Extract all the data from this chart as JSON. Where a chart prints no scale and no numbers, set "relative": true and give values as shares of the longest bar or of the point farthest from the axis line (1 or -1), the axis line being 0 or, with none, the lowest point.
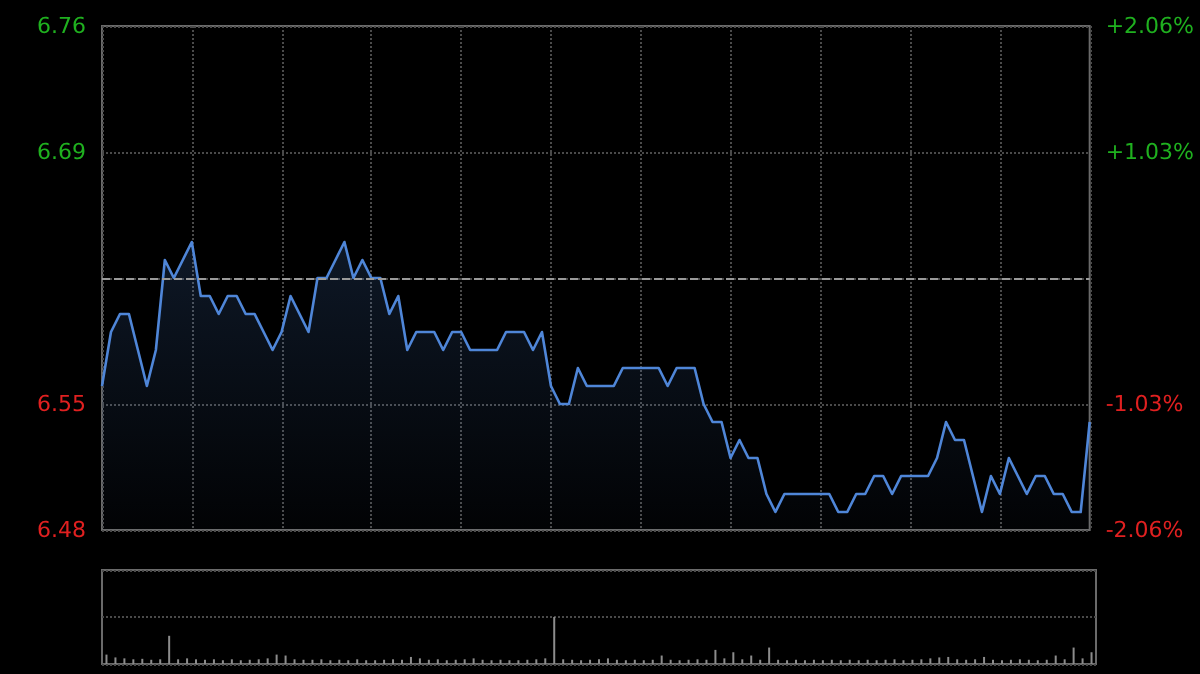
{
  "chart_data": [
    {
      "type": "area",
      "categories": [
        null,
        null,
        null,
        null,
        null,
        null,
        null,
        null,
        null,
        null,
        null,
        null,
        null,
        null,
        null,
        null,
        null,
        null,
        null,
        null,
        null,
        null,
        null,
        null,
        null,
        null,
        null,
        null,
        null,
        null,
        null,
        null,
        null,
        null,
        null,
        null,
        null,
        null,
        null,
        null,
        null,
        null,
        null,
        null,
        null,
        null,
        null,
        null,
        null,
        null,
        null,
        null,
        null,
        null,
        null,
        null,
        null,
        null,
        null,
        null,
        null,
        null,
        null,
        null,
        null,
        null,
        null,
        null,
        null,
        null,
        null,
        null,
        null,
        null,
        null,
        null,
        null,
        null,
        null,
        null,
        null,
        null,
        null,
        null,
        null,
        null,
        null,
        null,
        null,
        null,
        null,
        null,
        null,
        null,
        null,
        null,
        null,
        null,
        null,
        null,
        null,
        null,
        null,
        null,
        null,
        null,
        null,
        null,
        null,
        null,
        null
      ],
      "series": [
        {
          "color": "#4f86d8",
          "values": [
            6.56,
            6.59,
            6.6,
            6.6,
            6.58,
            6.56,
            6.58,
            6.63,
            6.62,
            6.63,
            6.64,
            6.61,
            6.61,
            6.6,
            6.61,
            6.61,
            6.6,
            6.6,
            6.59,
            6.58,
            6.59,
            6.61,
            6.6,
            6.59,
            6.62,
            6.62,
            6.63,
            6.64,
            6.62,
            6.63,
            6.62,
            6.62,
            6.6,
            6.61,
            6.58,
            6.59,
            6.59,
            6.59,
            6.58,
            6.59,
            6.59,
            6.58,
            6.58,
            6.58,
            6.58,
            6.59,
            6.59,
            6.59,
            6.58,
            6.59,
            6.56,
            6.55,
            6.55,
            6.57,
            6.56,
            6.56,
            6.56,
            6.56,
            6.57,
            6.57,
            6.57,
            6.57,
            6.57,
            6.56,
            6.57,
            6.57,
            6.57,
            6.55,
            6.54,
            6.54,
            6.52,
            6.53,
            6.52,
            6.52,
            6.5,
            6.49,
            6.5,
            6.5,
            6.5,
            6.5,
            6.5,
            6.5,
            6.49,
            6.49,
            6.5,
            6.5,
            6.51,
            6.51,
            6.5,
            6.51,
            6.51,
            6.51,
            6.51,
            6.52,
            6.54,
            6.53,
            6.53,
            6.51,
            6.49,
            6.51,
            6.5,
            6.52,
            6.51,
            6.5,
            6.51,
            6.51,
            6.5,
            6.5,
            6.49,
            6.49,
            6.54
          ]
        }
      ],
      "ylim": [
        6.48,
        6.76
      ],
      "yticks": [
        6.48,
        6.55,
        {
          "value": 6.62,
          "label": null
        },
        6.69,
        6.76
      ],
      "y2lim": [
        -2.06,
        2.06
      ],
      "y2ticks": [
        {
          "value": -2.06,
          "label": "-2.06%"
        },
        {
          "value": -1.03,
          "label": "-1.03%"
        },
        {
          "value": 0,
          "label": null
        },
        {
          "value": 1.03,
          "label": "+1.03%"
        },
        {
          "value": 2.06,
          "label": "+2.06%"
        }
      ],
      "ref_lines": [
        {
          "axis": "y",
          "value": 6.62,
          "color": "#9a9a9a",
          "line_style": "dashed"
        }
      ],
      "grid": true,
      "tick_labels": "y"
    },
    {
      "type": "bar",
      "relative": true,
      "categories": [
        null,
        null,
        null,
        null,
        null,
        null,
        null,
        null,
        null,
        null,
        null,
        null,
        null,
        null,
        null,
        null,
        null,
        null,
        null,
        null,
        null,
        null,
        null,
        null,
        null,
        null,
        null,
        null,
        null,
        null,
        null,
        null,
        null,
        null,
        null,
        null,
        null,
        null,
        null,
        null,
        null,
        null,
        null,
        null,
        null,
        null,
        null,
        null,
        null,
        null,
        null,
        null,
        null,
        null,
        null,
        null,
        null,
        null,
        null,
        null,
        null,
        null,
        null,
        null,
        null,
        null,
        null,
        null,
        null,
        null,
        null,
        null,
        null,
        null,
        null,
        null,
        null,
        null,
        null,
        null,
        null,
        null,
        null,
        null,
        null,
        null,
        null,
        null,
        null,
        null,
        null,
        null,
        null,
        null,
        null,
        null,
        null,
        null,
        null,
        null,
        null,
        null,
        null,
        null,
        null,
        null,
        null,
        null,
        null,
        null,
        null
      ],
      "series": [
        {
          "color": "#8c8c8c",
          "values": [
            0.2,
            0.14,
            0.12,
            0.1,
            0.11,
            0.09,
            0.1,
            0.6,
            0.1,
            0.12,
            0.1,
            0.09,
            0.1,
            0.08,
            0.1,
            0.08,
            0.09,
            0.1,
            0.12,
            0.2,
            0.18,
            0.1,
            0.09,
            0.09,
            0.1,
            0.08,
            0.09,
            0.08,
            0.1,
            0.08,
            0.08,
            0.09,
            0.1,
            0.09,
            0.15,
            0.12,
            0.09,
            0.1,
            0.08,
            0.09,
            0.1,
            0.12,
            0.09,
            0.08,
            0.09,
            0.08,
            0.08,
            0.09,
            0.1,
            0.12,
            1.0,
            0.1,
            0.09,
            0.08,
            0.09,
            0.1,
            0.12,
            0.09,
            0.08,
            0.09,
            0.08,
            0.09,
            0.18,
            0.09,
            0.08,
            0.09,
            0.1,
            0.09,
            0.3,
            0.12,
            0.25,
            0.1,
            0.18,
            0.09,
            0.35,
            0.09,
            0.08,
            0.09,
            0.08,
            0.09,
            0.08,
            0.09,
            0.08,
            0.09,
            0.08,
            0.09,
            0.08,
            0.09,
            0.1,
            0.08,
            0.09,
            0.1,
            0.12,
            0.14,
            0.15,
            0.1,
            0.09,
            0.1,
            0.15,
            0.09,
            0.08,
            0.09,
            0.1,
            0.09,
            0.08,
            0.09,
            0.18,
            0.1,
            0.35,
            0.12,
            0.25
          ]
        }
      ],
      "grid": "y",
      "tick_labels": false
    }
  ]
}
